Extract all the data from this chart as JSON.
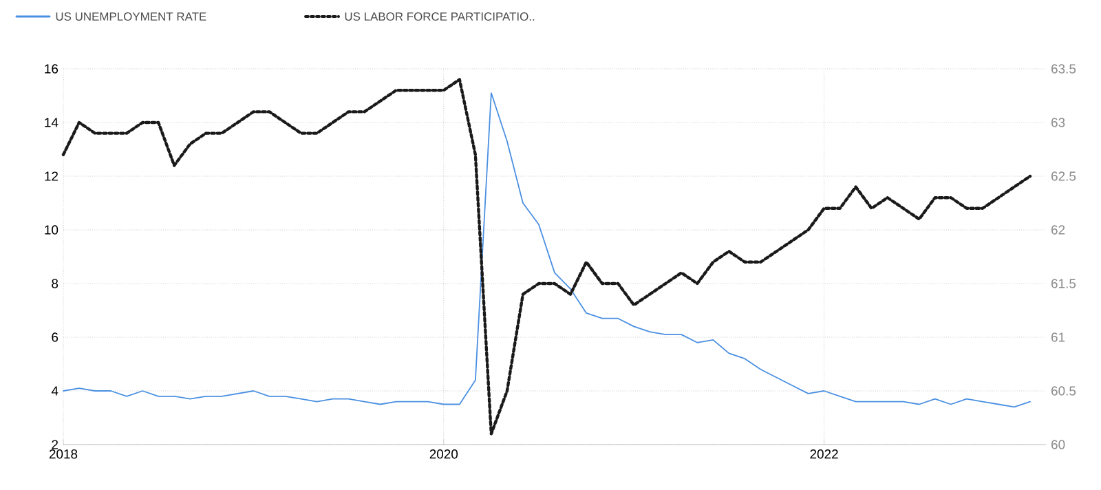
{
  "chart_data": {
    "type": "line",
    "x": [
      "2018-01",
      "2018-02",
      "2018-03",
      "2018-04",
      "2018-05",
      "2018-06",
      "2018-07",
      "2018-08",
      "2018-09",
      "2018-10",
      "2018-11",
      "2018-12",
      "2019-01",
      "2019-02",
      "2019-03",
      "2019-04",
      "2019-05",
      "2019-06",
      "2019-07",
      "2019-08",
      "2019-09",
      "2019-10",
      "2019-11",
      "2019-12",
      "2020-01",
      "2020-02",
      "2020-03",
      "2020-04",
      "2020-05",
      "2020-06",
      "2020-07",
      "2020-08",
      "2020-09",
      "2020-10",
      "2020-11",
      "2020-12",
      "2021-01",
      "2021-02",
      "2021-03",
      "2021-04",
      "2021-05",
      "2021-06",
      "2021-07",
      "2021-08",
      "2021-09",
      "2021-10",
      "2021-11",
      "2021-12",
      "2022-01",
      "2022-02",
      "2022-03",
      "2022-04",
      "2022-05",
      "2022-06",
      "2022-07",
      "2022-08",
      "2022-09",
      "2022-10",
      "2022-11",
      "2022-12",
      "2023-01",
      "2023-02"
    ],
    "series": [
      {
        "name": "US UNEMPLOYMENT RATE",
        "color": "#4a90e2",
        "line_style": "solid",
        "values": [
          4.0,
          4.1,
          4.0,
          4.0,
          3.8,
          4.0,
          3.8,
          3.8,
          3.7,
          3.8,
          3.8,
          3.9,
          4.0,
          3.8,
          3.8,
          3.7,
          3.6,
          3.7,
          3.7,
          3.6,
          3.5,
          3.6,
          3.6,
          3.6,
          3.5,
          3.5,
          4.4,
          15.1,
          13.3,
          11.0,
          10.2,
          8.4,
          7.8,
          6.9,
          6.7,
          6.7,
          6.4,
          6.2,
          6.1,
          6.1,
          5.8,
          5.9,
          5.4,
          5.2,
          4.8,
          4.5,
          4.2,
          3.9,
          4.0,
          3.8,
          3.6,
          3.6,
          3.6,
          3.6,
          3.5,
          3.7,
          3.5,
          3.7,
          3.6,
          3.5,
          3.4,
          3.6
        ]
      },
      {
        "name": "US LABOR FORCE PARTICIPATIO..",
        "color": "#1a1a1a",
        "line_style": "dotted",
        "axis": "y2",
        "values": [
          62.7,
          63.0,
          62.9,
          62.9,
          62.9,
          63.0,
          63.0,
          62.6,
          62.8,
          62.9,
          62.9,
          63.0,
          63.1,
          63.1,
          63.0,
          62.9,
          62.9,
          63.0,
          63.1,
          63.1,
          63.2,
          63.3,
          63.3,
          63.3,
          63.3,
          63.4,
          62.7,
          60.1,
          60.5,
          61.4,
          61.5,
          61.5,
          61.4,
          61.7,
          61.5,
          61.5,
          61.3,
          61.4,
          61.5,
          61.6,
          61.5,
          61.7,
          61.8,
          61.7,
          61.7,
          61.8,
          61.9,
          62.0,
          62.2,
          62.2,
          62.4,
          62.2,
          62.3,
          62.2,
          62.1,
          62.3,
          62.3,
          62.2,
          62.2,
          62.3,
          62.4,
          62.5
        ]
      }
    ],
    "xlim": [
      "2018-01",
      "2023-03"
    ],
    "xticks": [
      "2018",
      "2020",
      "2022"
    ],
    "ylim": [
      2,
      16
    ],
    "yticks": [
      2,
      4,
      6,
      8,
      10,
      12,
      14,
      16
    ],
    "y2lim": [
      60,
      63.5
    ],
    "y2ticks": [
      60,
      60.5,
      61,
      61.5,
      62,
      62.5,
      63,
      63.5
    ],
    "grid": true,
    "legend": "top left"
  }
}
